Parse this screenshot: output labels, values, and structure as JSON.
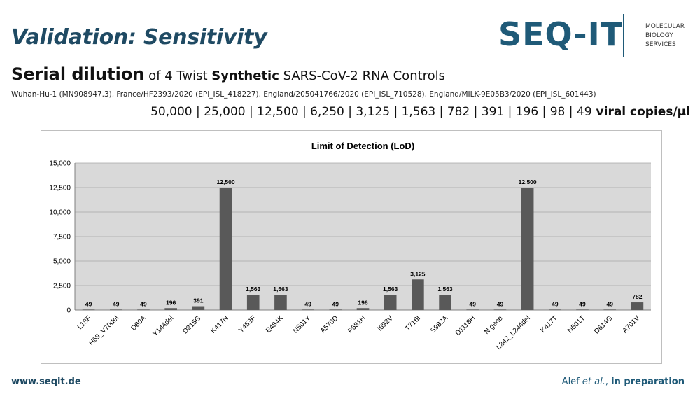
{
  "slide": {
    "title": "Validation: Sensitivity",
    "logo": {
      "word": "SEQ-IT",
      "line1": "MOLECULAR",
      "line2": "BIOLOGY",
      "line3": "SERVICES"
    },
    "heading": {
      "part1": "Serial dilution",
      "part2": " of 4 Twist ",
      "part3": "Synthetic",
      "part4": " SARS-CoV-2 RNA Controls"
    },
    "sources": "Wuhan-Hu-1 (MN908947.3), France/HF2393/2020 (EPI_ISL_418227), England/205041766/2020 (EPI_ISL_710528), England/MILK-9E05B3/2020 (EPI_ISL_601443)",
    "dilutions": "50,000 | 25,000 | 12,500 | 6,250 | 3,125 | 1,563 | 782 | 391 | 196 | 98 | 49",
    "dilutions_unit": "viral copies/µl",
    "footer_left": "www.seqit.de",
    "footer_right": {
      "author": "Alef ",
      "etal": "et al.",
      "sep": ", ",
      "status": "in preparation"
    },
    "colors": {
      "title": "#1f4a63",
      "bar": "#595959",
      "plot_bg": "#d9d9d9"
    }
  },
  "chart_data": {
    "type": "bar",
    "title": "Limit of Detection (LoD)",
    "xlabel": "",
    "ylabel": "",
    "ylim": [
      0,
      15000
    ],
    "yticks": [
      0,
      2500,
      5000,
      7500,
      10000,
      12500,
      15000
    ],
    "ytick_labels": [
      "0",
      "2,500",
      "5,000",
      "7,500",
      "10,000",
      "12,500",
      "15,000"
    ],
    "grid": true,
    "categories": [
      "L18F",
      "H69_V70del",
      "D80A",
      "Y144del",
      "D215G",
      "K417N",
      "Y453F",
      "E484K",
      "N501Y",
      "A570D",
      "P681H",
      "I692V",
      "T716I",
      "S982A",
      "D1118H",
      "N gene",
      "L242_L244del",
      "K417T",
      "N501T",
      "D614G",
      "A701V"
    ],
    "values": [
      49,
      49,
      49,
      196,
      391,
      12500,
      1563,
      1563,
      49,
      49,
      196,
      1563,
      3125,
      1563,
      49,
      49,
      12500,
      49,
      49,
      49,
      782
    ],
    "data_labels": [
      "49",
      "49",
      "49",
      "196",
      "391",
      "12,500",
      "1,563",
      "1,563",
      "49",
      "49",
      "196",
      "1,563",
      "3,125",
      "1,563",
      "49",
      "49",
      "12,500",
      "49",
      "49",
      "49",
      "782"
    ]
  }
}
